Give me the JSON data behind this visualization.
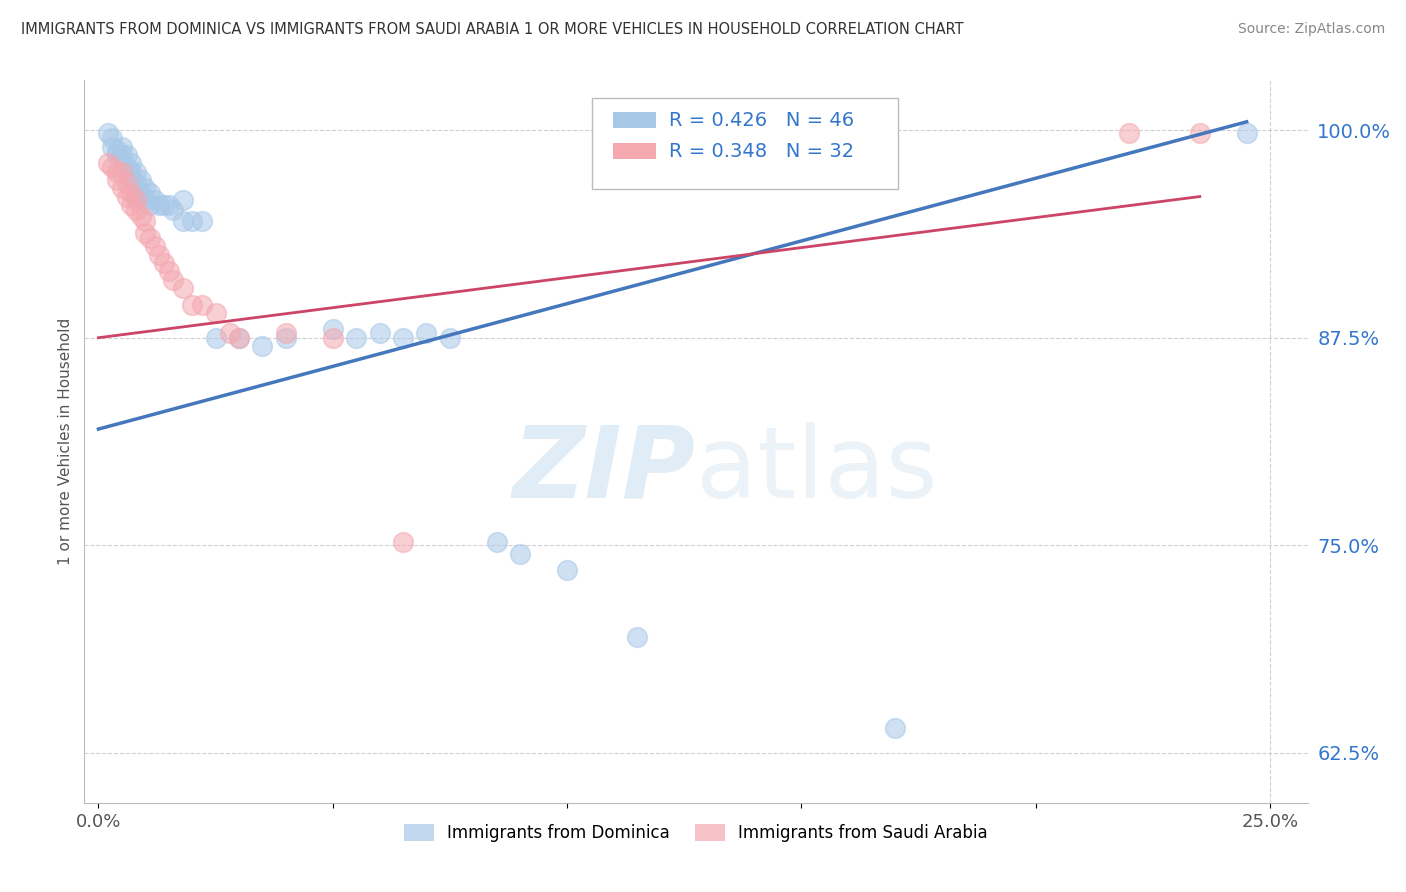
{
  "title": "IMMIGRANTS FROM DOMINICA VS IMMIGRANTS FROM SAUDI ARABIA 1 OR MORE VEHICLES IN HOUSEHOLD CORRELATION CHART",
  "source": "Source: ZipAtlas.com",
  "ylabel": "1 or more Vehicles in Household",
  "legend_label1": "Immigrants from Dominica",
  "legend_label2": "Immigrants from Saudi Arabia",
  "R1": 0.426,
  "N1": 46,
  "R2": 0.348,
  "N2": 32,
  "color1": "#a8c8e8",
  "color2": "#f4a8b0",
  "line_color1": "#4477bb",
  "line_color2": "#cc4466",
  "xlim_min": -0.003,
  "xlim_max": 0.258,
  "ylim_min": 0.595,
  "ylim_max": 1.03,
  "yticks": [
    0.625,
    0.75,
    0.875,
    1.0
  ],
  "ytick_labels": [
    "62.5%",
    "75.0%",
    "87.5%",
    "100.0%"
  ],
  "background_color": "#ffffff",
  "watermark_zip": "ZIP",
  "watermark_atlas": "atlas",
  "grid_color": "#cccccc",
  "dominica_x": [
    0.002,
    0.003,
    0.003,
    0.004,
    0.004,
    0.005,
    0.005,
    0.006,
    0.006,
    0.007,
    0.007,
    0.007,
    0.008,
    0.008,
    0.008,
    0.009,
    0.009,
    0.01,
    0.01,
    0.011,
    0.011,
    0.012,
    0.013,
    0.014,
    0.015,
    0.016,
    0.018,
    0.018,
    0.02,
    0.022,
    0.025,
    0.03,
    0.035,
    0.04,
    0.05,
    0.055,
    0.06,
    0.065,
    0.07,
    0.075,
    0.085,
    0.09,
    0.1,
    0.115,
    0.17,
    0.245
  ],
  "dominica_y": [
    0.998,
    0.995,
    0.99,
    0.988,
    0.985,
    0.99,
    0.985,
    0.985,
    0.978,
    0.98,
    0.975,
    0.97,
    0.975,
    0.968,
    0.96,
    0.97,
    0.962,
    0.965,
    0.958,
    0.962,
    0.955,
    0.958,
    0.955,
    0.955,
    0.955,
    0.952,
    0.945,
    0.958,
    0.945,
    0.945,
    0.875,
    0.875,
    0.87,
    0.875,
    0.88,
    0.875,
    0.878,
    0.875,
    0.878,
    0.875,
    0.752,
    0.745,
    0.735,
    0.695,
    0.64,
    0.998
  ],
  "saudi_x": [
    0.002,
    0.003,
    0.004,
    0.004,
    0.005,
    0.005,
    0.006,
    0.006,
    0.007,
    0.007,
    0.008,
    0.008,
    0.009,
    0.01,
    0.01,
    0.011,
    0.012,
    0.013,
    0.014,
    0.015,
    0.016,
    0.018,
    0.02,
    0.022,
    0.025,
    0.028,
    0.03,
    0.04,
    0.05,
    0.065,
    0.22,
    0.235
  ],
  "saudi_y": [
    0.98,
    0.978,
    0.975,
    0.97,
    0.975,
    0.965,
    0.968,
    0.96,
    0.962,
    0.955,
    0.958,
    0.952,
    0.948,
    0.945,
    0.938,
    0.935,
    0.93,
    0.925,
    0.92,
    0.915,
    0.91,
    0.905,
    0.895,
    0.895,
    0.89,
    0.878,
    0.875,
    0.878,
    0.875,
    0.752,
    0.998,
    0.998
  ],
  "trendline1_x0": 0.0,
  "trendline1_y0": 0.82,
  "trendline1_x1": 0.245,
  "trendline1_y1": 1.005,
  "trendline2_x0": 0.0,
  "trendline2_y0": 0.875,
  "trendline2_x1": 0.235,
  "trendline2_y1": 0.96
}
